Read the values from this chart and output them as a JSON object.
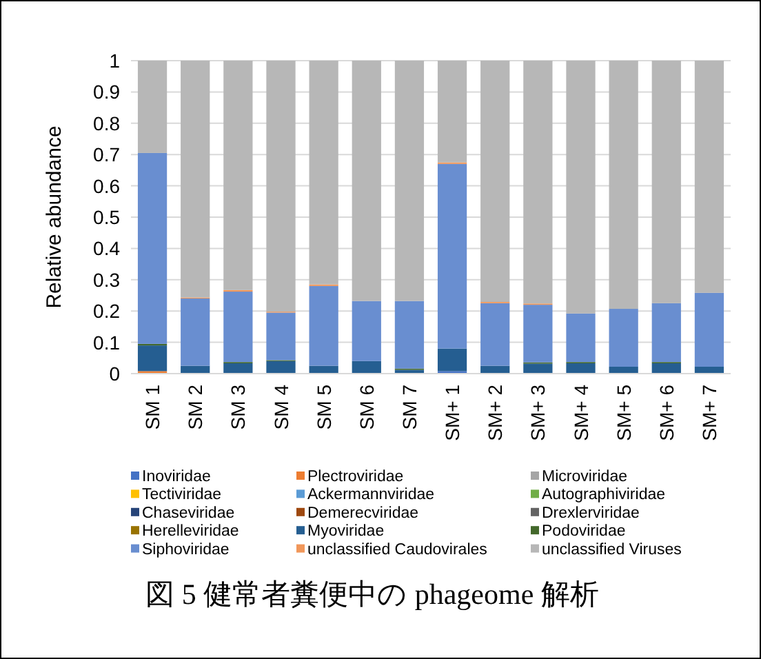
{
  "chart_data": {
    "type": "bar",
    "stacked": true,
    "ylabel": "Relative abundance",
    "categories": [
      "SM 1",
      "SM 2",
      "SM 3",
      "SM 4",
      "SM 5",
      "SM 6",
      "SM 7",
      "SM+ 1",
      "SM+ 2",
      "SM+ 3",
      "SM+ 4",
      "SM+ 5",
      "SM+ 6",
      "SM+ 7"
    ],
    "ylim": [
      0,
      1
    ],
    "yticks": [
      0,
      0.1,
      0.2,
      0.3,
      0.4,
      0.5,
      0.6,
      0.7,
      0.8,
      0.9,
      1
    ],
    "grid": "y",
    "legend": "bottom",
    "series": [
      {
        "name": "Inoviridae",
        "color": "#4472c4",
        "values": [
          0,
          0,
          0,
          0,
          0,
          0,
          0,
          0.008,
          0,
          0,
          0,
          0,
          0,
          0
        ]
      },
      {
        "name": "Plectroviridae",
        "color": "#ed7d31",
        "values": [
          0.008,
          0,
          0,
          0,
          0,
          0,
          0,
          0,
          0,
          0,
          0,
          0,
          0,
          0
        ]
      },
      {
        "name": "Microviridae",
        "color": "#a5a5a5",
        "values": [
          0,
          0,
          0,
          0,
          0,
          0,
          0,
          0,
          0,
          0,
          0,
          0,
          0,
          0
        ]
      },
      {
        "name": "Tectiviridae",
        "color": "#ffc000",
        "values": [
          0,
          0,
          0,
          0,
          0,
          0,
          0,
          0,
          0,
          0,
          0,
          0,
          0,
          0
        ]
      },
      {
        "name": "Ackermannviridae",
        "color": "#5b9bd5",
        "values": [
          0,
          0,
          0,
          0,
          0,
          0,
          0,
          0,
          0,
          0,
          0,
          0,
          0,
          0
        ]
      },
      {
        "name": "Autographiviridae",
        "color": "#70ad47",
        "values": [
          0,
          0,
          0,
          0,
          0,
          0,
          0,
          0,
          0,
          0,
          0,
          0,
          0,
          0
        ]
      },
      {
        "name": "Chaseviridae",
        "color": "#264478",
        "values": [
          0,
          0,
          0,
          0,
          0,
          0,
          0,
          0,
          0,
          0,
          0,
          0,
          0,
          0
        ]
      },
      {
        "name": "Demerecviridae",
        "color": "#9e480e",
        "values": [
          0,
          0,
          0,
          0,
          0,
          0,
          0,
          0,
          0,
          0,
          0,
          0,
          0,
          0
        ]
      },
      {
        "name": "Drexlerviridae",
        "color": "#636363",
        "values": [
          0,
          0,
          0,
          0,
          0,
          0,
          0,
          0,
          0,
          0,
          0,
          0,
          0,
          0
        ]
      },
      {
        "name": "Herelleviridae",
        "color": "#997300",
        "values": [
          0,
          0,
          0,
          0,
          0,
          0,
          0,
          0,
          0,
          0,
          0,
          0,
          0,
          0
        ]
      },
      {
        "name": "Myoviridae",
        "color": "#255e91",
        "values": [
          0.082,
          0.025,
          0.033,
          0.04,
          0.025,
          0.04,
          0.012,
          0.072,
          0.025,
          0.032,
          0.033,
          0.022,
          0.033,
          0.022
        ]
      },
      {
        "name": "Podoviridae",
        "color": "#43682b",
        "values": [
          0.005,
          0,
          0.004,
          0.003,
          0,
          0,
          0.004,
          0,
          0,
          0.004,
          0.004,
          0,
          0.004,
          0
        ]
      },
      {
        "name": "Siphoviridae",
        "color": "#698ed0",
        "values": [
          0.61,
          0.215,
          0.225,
          0.152,
          0.255,
          0.192,
          0.216,
          0.59,
          0.2,
          0.184,
          0.155,
          0.185,
          0.188,
          0.236
        ]
      },
      {
        "name": "unclassified Caudovirales",
        "color": "#f1975a",
        "values": [
          0,
          0.003,
          0.005,
          0.003,
          0.005,
          0,
          0,
          0.005,
          0.004,
          0.004,
          0,
          0,
          0,
          0
        ]
      },
      {
        "name": "unclassified Viruses",
        "color": "#b7b7b7",
        "values": [
          0.295,
          0.757,
          0.733,
          0.802,
          0.715,
          0.768,
          0.768,
          0.325,
          0.771,
          0.776,
          0.808,
          0.793,
          0.775,
          0.742
        ]
      }
    ],
    "annotations": [
      "図 5 健常者糞便中の phageome 解析"
    ]
  }
}
